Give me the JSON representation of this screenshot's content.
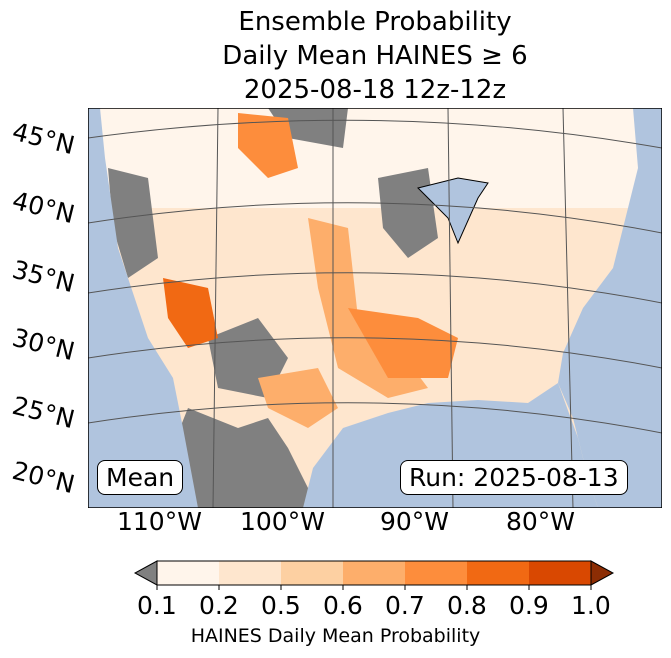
{
  "title": {
    "line1": "Ensemble Probability",
    "line2": "Daily Mean HAINES ≥ 6",
    "line3": "2025-08-18 12z-12z"
  },
  "map": {
    "lat_labels": [
      "45°N",
      "40°N",
      "35°N",
      "30°N",
      "25°N",
      "20°N"
    ],
    "lon_labels": [
      "110°W",
      "100°W",
      "90°W",
      "80°W"
    ],
    "left_box": "Mean",
    "right_box": "Run: 2025-08-13",
    "ocean_color": "#b0c4de",
    "below_color": "#808080"
  },
  "colorbar": {
    "ticks": [
      "0.1",
      "0.2",
      "0.5",
      "0.6",
      "0.7",
      "0.8",
      "0.9",
      "1.0"
    ],
    "colors": [
      "#fff5eb",
      "#fee6ce",
      "#fdd0a2",
      "#fdae6b",
      "#fd8d3c",
      "#f16913",
      "#d94801"
    ],
    "under_color": "#808080",
    "over_color": "#8c2d04",
    "label": "HAINES Daily Mean Probability"
  }
}
